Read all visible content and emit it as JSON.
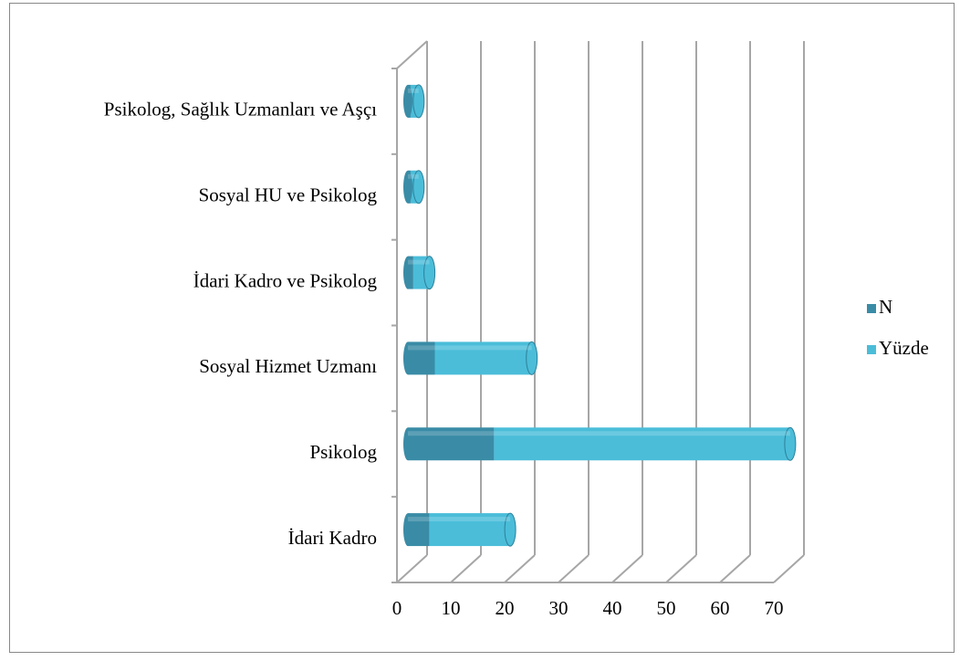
{
  "chart_data": {
    "type": "bar",
    "orientation": "horizontal",
    "stacked": true,
    "categories": [
      "İdari Kadro",
      "Psikolog",
      "Sosyal Hizmet Uzmanı",
      "İdari Kadro ve Psikolog",
      "Sosyal HU ve Psikolog",
      "Psikolog, Sağlık Uzmanları ve Aşçı"
    ],
    "series": [
      {
        "name": "N",
        "color": "#3a8ca6",
        "values": [
          4,
          16,
          5,
          1,
          0.5,
          0.5
        ]
      },
      {
        "name": "Yüzde",
        "color": "#4bbdd9",
        "values": [
          15,
          55,
          18,
          3,
          1.5,
          1.5
        ]
      }
    ],
    "xlim": [
      0,
      70
    ],
    "xticks": [
      0,
      10,
      20,
      30,
      40,
      50,
      60,
      70
    ],
    "grid": true,
    "legend": "right"
  }
}
